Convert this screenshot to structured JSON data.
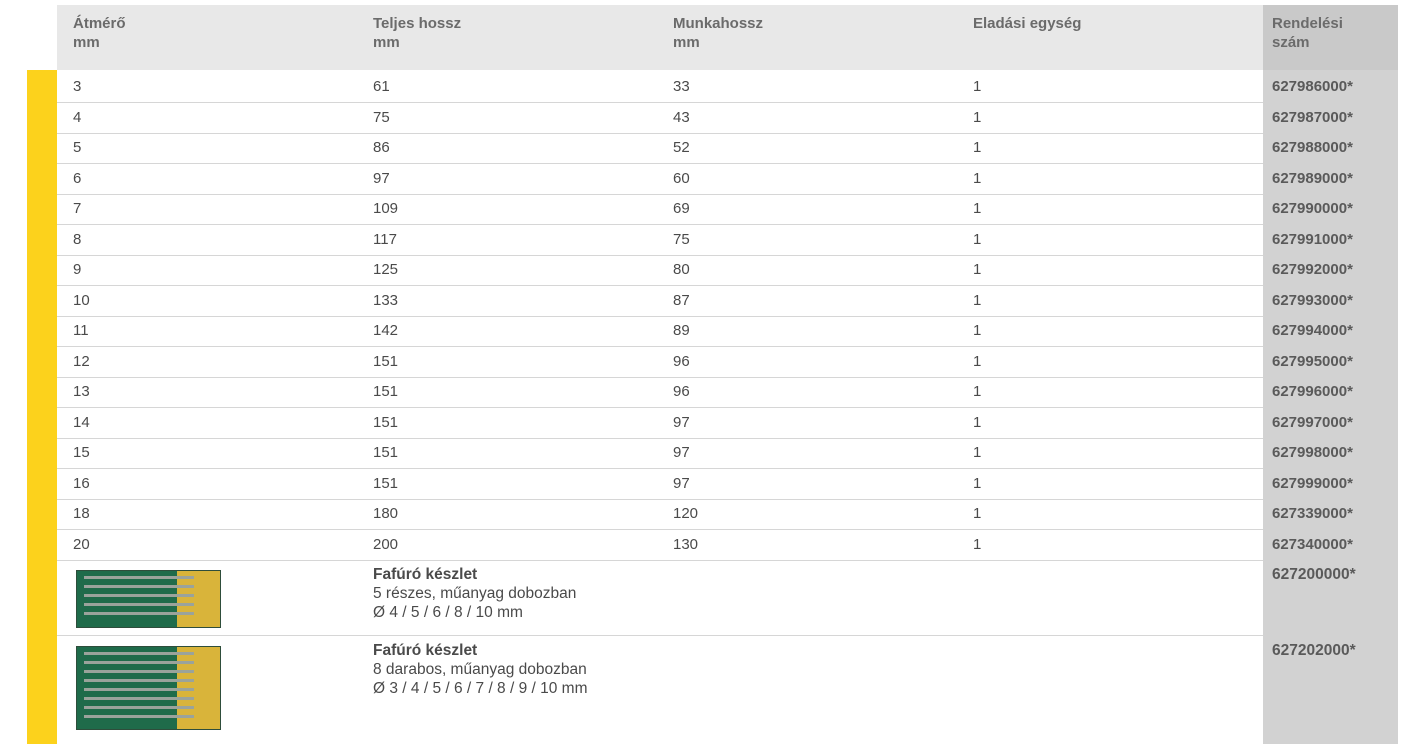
{
  "table": {
    "header": [
      {
        "title": "Átmérő",
        "unit": "mm"
      },
      {
        "title": "Teljes hossz",
        "unit": "mm"
      },
      {
        "title": "Munkahossz",
        "unit": "mm"
      },
      {
        "title": "Eladási egység"
      },
      {
        "title": "Rendelési szám"
      }
    ],
    "rows": [
      [
        "3",
        "61",
        "33",
        "1",
        "627986000*"
      ],
      [
        "4",
        "75",
        "43",
        "1",
        "627987000*"
      ],
      [
        "5",
        "86",
        "52",
        "1",
        "627988000*"
      ],
      [
        "6",
        "97",
        "60",
        "1",
        "627989000*"
      ],
      [
        "7",
        "109",
        "69",
        "1",
        "627990000*"
      ],
      [
        "8",
        "117",
        "75",
        "1",
        "627991000*"
      ],
      [
        "9",
        "125",
        "80",
        "1",
        "627992000*"
      ],
      [
        "10",
        "133",
        "87",
        "1",
        "627993000*"
      ],
      [
        "11",
        "142",
        "89",
        "1",
        "627994000*"
      ],
      [
        "12",
        "151",
        "96",
        "1",
        "627995000*"
      ],
      [
        "13",
        "151",
        "96",
        "1",
        "627996000*"
      ],
      [
        "14",
        "151",
        "97",
        "1",
        "627997000*"
      ],
      [
        "15",
        "151",
        "97",
        "1",
        "627998000*"
      ],
      [
        "16",
        "151",
        "97",
        "1",
        "627999000*"
      ],
      [
        "18",
        "180",
        "120",
        "1",
        "627339000*"
      ],
      [
        "20",
        "200",
        "130",
        "1",
        "627340000*"
      ]
    ],
    "sets": [
      {
        "name": "Fafúró készlet",
        "description": "5 részes, műanyag dobozban",
        "sizes": "Ø 4 / 5 / 6 / 8 / 10 mm",
        "order": "627200000*"
      },
      {
        "name": "Fafúró készlet",
        "description": "8 darabos, műanyag dobozban",
        "sizes": "Ø 3 / 4 / 5 / 6 / 7 / 8 / 9 / 10 mm",
        "order": "627202000*"
      }
    ]
  }
}
